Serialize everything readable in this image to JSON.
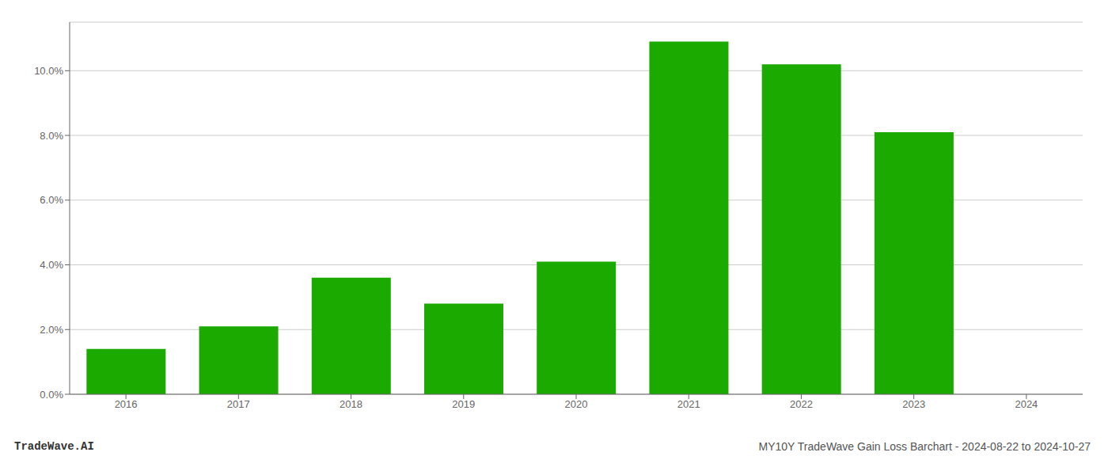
{
  "chart_data": {
    "type": "bar",
    "categories": [
      "2016",
      "2017",
      "2018",
      "2019",
      "2020",
      "2021",
      "2022",
      "2023",
      "2024"
    ],
    "values": [
      0.014,
      0.021,
      0.036,
      0.028,
      0.041,
      0.109,
      0.102,
      0.081,
      null
    ],
    "color": "#1aaa00",
    "ylim": [
      0,
      0.115
    ],
    "yticks": [
      {
        "value": 0.0,
        "label": "0.0%"
      },
      {
        "value": 0.02,
        "label": "2.0%"
      },
      {
        "value": 0.04,
        "label": "4.0%"
      },
      {
        "value": 0.06,
        "label": "6.0%"
      },
      {
        "value": 0.08,
        "label": "8.0%"
      },
      {
        "value": 0.1,
        "label": "10.0%"
      }
    ],
    "grid": true,
    "annotations": [
      "TradeWave.AI",
      "MY10Y TradeWave Gain Loss Barchart - 2024-08-22 to 2024-10-27"
    ]
  }
}
